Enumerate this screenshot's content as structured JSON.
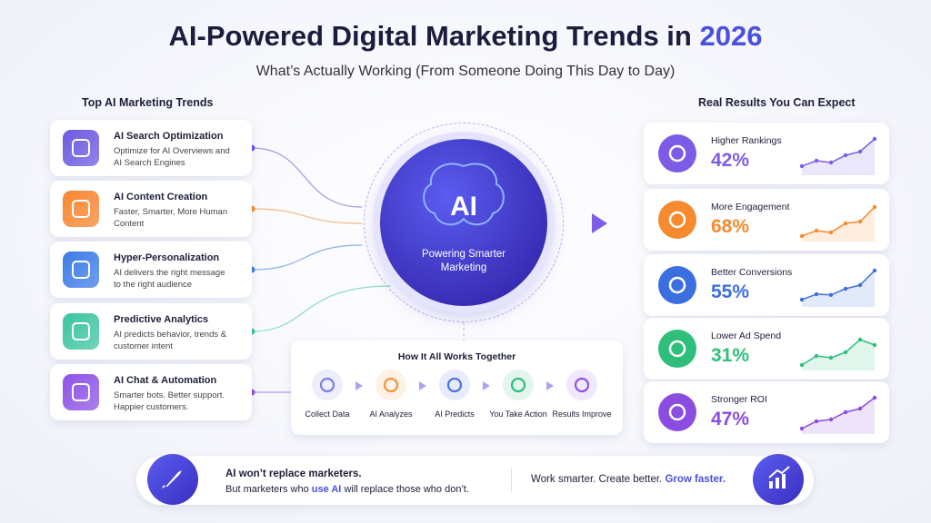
{
  "header": {
    "title": "AI-Powered Digital Marketing Trends in",
    "title_highlight": "2026",
    "subtitle": "What’s Actually Working (From Someone Doing This Day to Day)"
  },
  "trends": {
    "heading": "Top AI Marketing Trends",
    "items": [
      {
        "title": "AI Search Optimization",
        "description": "Optimize for AI Overviews and AI Search Engines"
      },
      {
        "title": "AI Content Creation",
        "description": "Faster, Smarter, More Human Content"
      },
      {
        "title": "Hyper-Personalization",
        "description": "AI delivers the right message to the right audience"
      },
      {
        "title": "Predictive Analytics",
        "description": "AI predicts behavior, trends & customer intent"
      },
      {
        "title": "AI Chat & Automation",
        "description": "Smarter bots. Better support. Happier customers."
      }
    ]
  },
  "center": {
    "label": "AI",
    "caption": "Powering Smarter Marketing"
  },
  "results": {
    "heading": "Real Results You Can Expect",
    "items": [
      {
        "label": "Higher Rankings",
        "value": "42%"
      },
      {
        "label": "More Engagement",
        "value": "68%"
      },
      {
        "label": "Better Conversions",
        "value": "55%"
      },
      {
        "label": "Lower Ad Spend",
        "value": "31%"
      },
      {
        "label": "Stronger ROI",
        "value": "47%"
      }
    ]
  },
  "process": {
    "heading": "How It All Works Together",
    "steps": [
      "Collect Data",
      "AI Analyzes",
      "AI Predicts",
      "You Take Action",
      "Results Improve"
    ]
  },
  "footer": {
    "line1": "AI won’t replace marketers.",
    "line2_start": "But marketers who",
    "line2_highlight": "use AI",
    "line2_end": "will replace those who don’t.",
    "tagline_start": "Work smarter. Create better.",
    "tagline_highlight": "Grow faster."
  }
}
